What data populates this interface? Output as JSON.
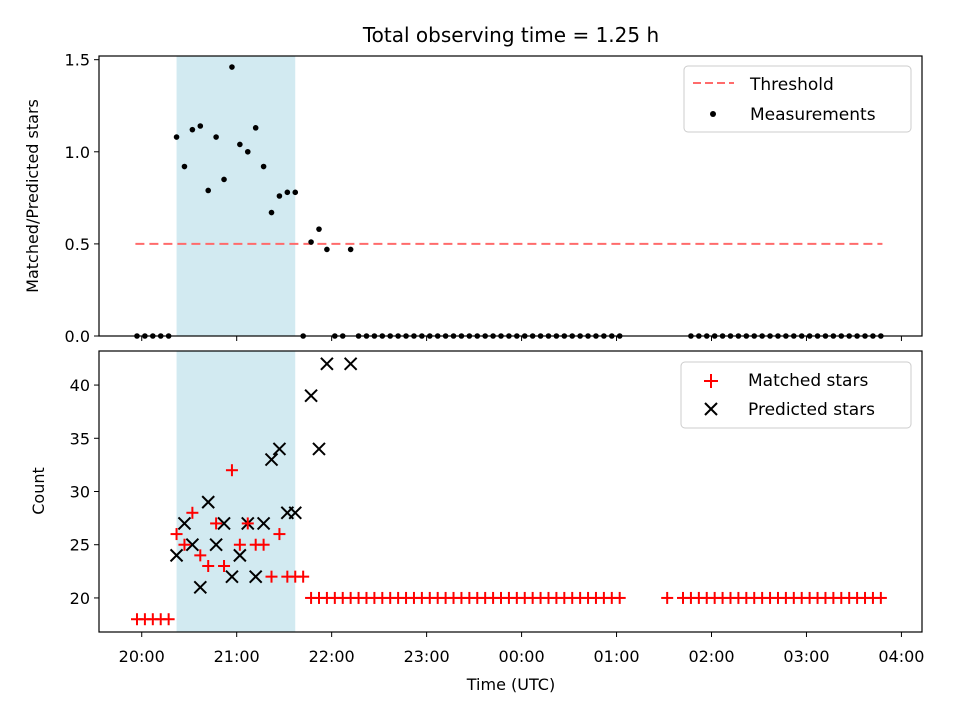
{
  "chart_data": {
    "type": "scatter",
    "title": "Total observing time = 1.25 h",
    "xlabel": "Time (UTC)",
    "x_ticks": [
      "20:00",
      "21:00",
      "22:00",
      "23:00",
      "00:00",
      "01:00",
      "02:00",
      "03:00",
      "04:00"
    ],
    "shaded_interval": [
      "20:22",
      "21:37"
    ],
    "colors": {
      "shade": "#add8e6",
      "threshold": "#ff6b6b",
      "matched": "#ff0000",
      "predicted": "#000000",
      "measurements": "#000000"
    },
    "top_panel": {
      "ylabel": "Matched/Predicted stars",
      "ylim": [
        0,
        1.52
      ],
      "y_ticks": [
        "0.0",
        "0.5",
        "1.0",
        "1.5"
      ],
      "threshold": {
        "name": "Threshold",
        "value": 0.5,
        "x_range": [
          "19:56",
          "03:48"
        ]
      },
      "legend": [
        "Threshold",
        "Measurements"
      ],
      "measurements": {
        "name": "Measurements",
        "points": [
          [
            "19:57",
            0
          ],
          [
            "20:02",
            0
          ],
          [
            "20:07",
            0
          ],
          [
            "20:12",
            0
          ],
          [
            "20:17",
            0
          ],
          [
            "20:22",
            1.08
          ],
          [
            "20:27",
            0.92
          ],
          [
            "20:32",
            1.12
          ],
          [
            "20:37",
            1.14
          ],
          [
            "20:42",
            0.79
          ],
          [
            "20:47",
            1.08
          ],
          [
            "20:52",
            0.85
          ],
          [
            "20:57",
            1.46
          ],
          [
            "21:02",
            1.04
          ],
          [
            "21:07",
            1.0
          ],
          [
            "21:12",
            1.13
          ],
          [
            "21:17",
            0.92
          ],
          [
            "21:22",
            0.67
          ],
          [
            "21:27",
            0.76
          ],
          [
            "21:32",
            0.78
          ],
          [
            "21:37",
            0.78
          ],
          [
            "21:42",
            0
          ],
          [
            "21:47",
            0.51
          ],
          [
            "21:52",
            0.58
          ],
          [
            "21:57",
            0.47
          ],
          [
            "22:02",
            0
          ],
          [
            "22:07",
            0
          ],
          [
            "22:12",
            0.47
          ]
        ],
        "zero_runs": [
          {
            "start": "22:17",
            "end": "01:02",
            "step_min": 5
          },
          {
            "start": "01:47",
            "end": "03:47",
            "step_min": 5
          }
        ]
      }
    },
    "bottom_panel": {
      "ylabel": "Count",
      "ylim": [
        16.8,
        43.2
      ],
      "y_ticks": [
        "20",
        "25",
        "30",
        "35",
        "40"
      ],
      "legend": [
        "Matched stars",
        "Predicted stars"
      ],
      "matched_stars": {
        "name": "Matched stars",
        "points": [
          [
            "19:57",
            18
          ],
          [
            "20:02",
            18
          ],
          [
            "20:07",
            18
          ],
          [
            "20:12",
            18
          ],
          [
            "20:17",
            18
          ],
          [
            "20:22",
            26
          ],
          [
            "20:27",
            25
          ],
          [
            "20:32",
            28
          ],
          [
            "20:37",
            24
          ],
          [
            "20:42",
            23
          ],
          [
            "20:47",
            27
          ],
          [
            "20:52",
            23
          ],
          [
            "20:57",
            32
          ],
          [
            "21:02",
            25
          ],
          [
            "21:07",
            27
          ],
          [
            "21:12",
            25
          ],
          [
            "21:17",
            25
          ],
          [
            "21:22",
            22
          ],
          [
            "21:27",
            26
          ],
          [
            "21:32",
            22
          ],
          [
            "21:37",
            22
          ],
          [
            "21:42",
            22
          ],
          [
            "21:47",
            20
          ],
          [
            "21:52",
            20
          ],
          [
            "21:57",
            20
          ],
          [
            "22:02",
            20
          ],
          [
            "22:07",
            20
          ],
          [
            "22:12",
            20
          ]
        ],
        "constant_runs": [
          {
            "start": "22:17",
            "end": "01:02",
            "step_min": 5,
            "value": 20
          },
          {
            "start": "01:32",
            "end": "01:32",
            "step_min": 5,
            "value": 20
          },
          {
            "start": "01:42",
            "end": "03:47",
            "step_min": 5,
            "value": 20
          }
        ]
      },
      "predicted_stars": {
        "name": "Predicted stars",
        "points": [
          [
            "20:22",
            24
          ],
          [
            "20:27",
            27
          ],
          [
            "20:32",
            25
          ],
          [
            "20:37",
            21
          ],
          [
            "20:42",
            29
          ],
          [
            "20:47",
            25
          ],
          [
            "20:52",
            27
          ],
          [
            "20:57",
            22
          ],
          [
            "21:02",
            24
          ],
          [
            "21:07",
            27
          ],
          [
            "21:12",
            22
          ],
          [
            "21:17",
            27
          ],
          [
            "21:22",
            33
          ],
          [
            "21:27",
            34
          ],
          [
            "21:32",
            28
          ],
          [
            "21:37",
            28
          ],
          [
            "21:47",
            39
          ],
          [
            "21:52",
            34
          ],
          [
            "21:57",
            42
          ],
          [
            "22:12",
            42
          ]
        ]
      }
    }
  }
}
